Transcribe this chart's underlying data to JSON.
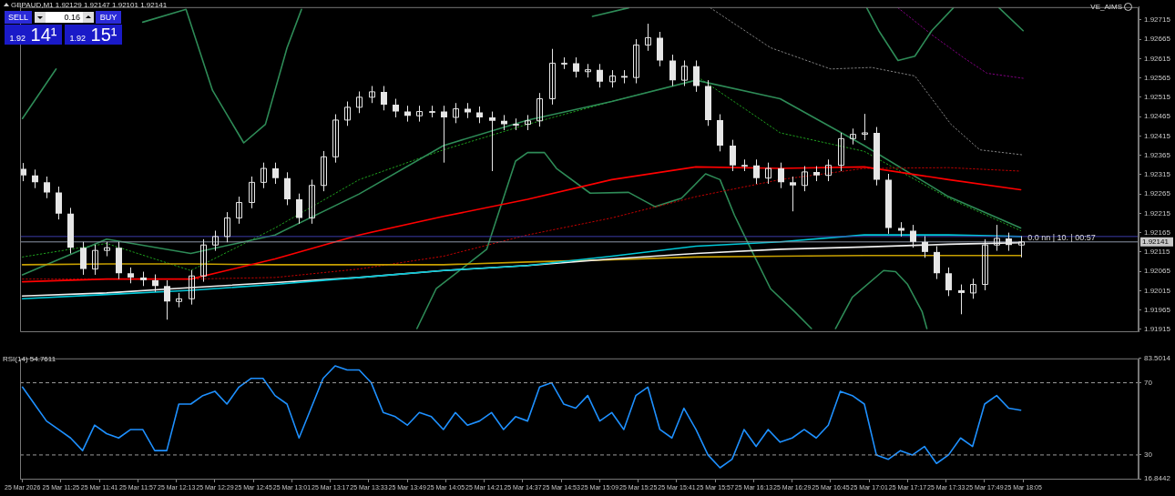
{
  "chart_data": [
    {
      "type": "candlestick",
      "title": "GBPAUD,M1 1.92129 1.92147 1.92101 1.92141",
      "color": "#e6e6e6",
      "tick_labels": "y",
      "xlim": [
        "2026-03-25T11:08",
        "2026-03-25T18:53"
      ],
      "ylim": [
        1.9191,
        1.92748
      ],
      "yticks": [
        1.92715,
        1.92665,
        1.92615,
        1.92565,
        1.92515,
        1.92465,
        1.92415,
        1.92365,
        1.92315,
        1.92265,
        1.92215,
        1.92165,
        1.92115,
        1.92065,
        1.92015,
        1.91965,
        1.91915
      ],
      "x": [
        "2026-03-25T11:09",
        "2026-03-25T11:14",
        "2026-03-25T11:19",
        "2026-03-25T11:24",
        "2026-03-25T11:29",
        "2026-03-25T11:34",
        "2026-03-25T11:39",
        "2026-03-25T11:44",
        "2026-03-25T11:49",
        "2026-03-25T11:54",
        "2026-03-25T11:59",
        "2026-03-25T12:04",
        "2026-03-25T12:09",
        "2026-03-25T12:14",
        "2026-03-25T12:19",
        "2026-03-25T12:24",
        "2026-03-25T12:29",
        "2026-03-25T12:34",
        "2026-03-25T12:39",
        "2026-03-25T12:44",
        "2026-03-25T12:49",
        "2026-03-25T12:54",
        "2026-03-25T12:59",
        "2026-03-25T13:04",
        "2026-03-25T13:09",
        "2026-03-25T13:14",
        "2026-03-25T13:19",
        "2026-03-25T13:24",
        "2026-03-25T13:29",
        "2026-03-25T13:34",
        "2026-03-25T13:39",
        "2026-03-25T13:44",
        "2026-03-25T13:49",
        "2026-03-25T13:54",
        "2026-03-25T13:59",
        "2026-03-25T14:04",
        "2026-03-25T14:09",
        "2026-03-25T14:14",
        "2026-03-25T14:19",
        "2026-03-25T14:24",
        "2026-03-25T14:29",
        "2026-03-25T14:34",
        "2026-03-25T14:39",
        "2026-03-25T14:44",
        "2026-03-25T14:49",
        "2026-03-25T14:54",
        "2026-03-25T14:59",
        "2026-03-25T15:04",
        "2026-03-25T15:09",
        "2026-03-25T15:14",
        "2026-03-25T15:19",
        "2026-03-25T15:24",
        "2026-03-25T15:29",
        "2026-03-25T15:34",
        "2026-03-25T15:39",
        "2026-03-25T15:44",
        "2026-03-25T15:49",
        "2026-03-25T15:54",
        "2026-03-25T15:59",
        "2026-03-25T16:04",
        "2026-03-25T16:09",
        "2026-03-25T16:14",
        "2026-03-25T16:19",
        "2026-03-25T16:24",
        "2026-03-25T16:29",
        "2026-03-25T16:34",
        "2026-03-25T16:39",
        "2026-03-25T16:44",
        "2026-03-25T16:49",
        "2026-03-25T16:54",
        "2026-03-25T16:59",
        "2026-03-25T17:04",
        "2026-03-25T17:09",
        "2026-03-25T17:14",
        "2026-03-25T17:19",
        "2026-03-25T17:24",
        "2026-03-25T17:29",
        "2026-03-25T17:34",
        "2026-03-25T17:39",
        "2026-03-25T17:44",
        "2026-03-25T17:49",
        "2026-03-25T17:54",
        "2026-03-25T17:59",
        "2026-03-25T18:04"
      ],
      "ohlc": [
        [
          1.9233,
          1.92345,
          1.92298,
          1.92313
        ],
        [
          1.92313,
          1.92328,
          1.9228,
          1.92295
        ],
        [
          1.92295,
          1.9231,
          1.92254,
          1.92269
        ],
        [
          1.92269,
          1.92284,
          1.92199,
          1.92214
        ],
        [
          1.92214,
          1.92229,
          1.92111,
          1.92126
        ],
        [
          1.92126,
          1.92141,
          1.92056,
          1.92071
        ],
        [
          1.92071,
          1.92134,
          1.92056,
          1.92119
        ],
        [
          1.92119,
          1.92141,
          1.92104,
          1.92126
        ],
        [
          1.92126,
          1.92141,
          1.92045,
          1.9206
        ],
        [
          1.9206,
          1.92075,
          1.92034,
          1.92049
        ],
        [
          1.92049,
          1.92064,
          1.92027,
          1.92042
        ],
        [
          1.92042,
          1.92057,
          1.92012,
          1.92027
        ],
        [
          1.92027,
          1.92042,
          1.9194,
          1.91987
        ],
        [
          1.91987,
          1.92009,
          1.91972,
          1.91994
        ],
        [
          1.91994,
          1.92068,
          1.91979,
          1.92053
        ],
        [
          1.92053,
          1.92148,
          1.92038,
          1.92133
        ],
        [
          1.92133,
          1.9217,
          1.92118,
          1.92155
        ],
        [
          1.92155,
          1.92218,
          1.9214,
          1.92203
        ],
        [
          1.92203,
          1.92258,
          1.92188,
          1.92243
        ],
        [
          1.92243,
          1.9231,
          1.92228,
          1.92295
        ],
        [
          1.92295,
          1.92346,
          1.9228,
          1.92331
        ],
        [
          1.92331,
          1.92346,
          1.92291,
          1.92306
        ],
        [
          1.92306,
          1.92321,
          1.92236,
          1.92251
        ],
        [
          1.92251,
          1.92266,
          1.92188,
          1.92203
        ],
        [
          1.92203,
          1.92302,
          1.92188,
          1.92287
        ],
        [
          1.92287,
          1.92376,
          1.92272,
          1.92361
        ],
        [
          1.92361,
          1.92471,
          1.92346,
          1.92456
        ],
        [
          1.92456,
          1.92504,
          1.92441,
          1.92489
        ],
        [
          1.92489,
          1.9253,
          1.92474,
          1.92515
        ],
        [
          1.92515,
          1.92544,
          1.925,
          1.92529
        ],
        [
          1.92529,
          1.92544,
          1.92481,
          1.92496
        ],
        [
          1.92496,
          1.92511,
          1.92463,
          1.92478
        ],
        [
          1.92478,
          1.92493,
          1.92452,
          1.92467
        ],
        [
          1.92467,
          1.92493,
          1.92452,
          1.92478
        ],
        [
          1.92478,
          1.92493,
          1.92463,
          1.92478
        ],
        [
          1.92478,
          1.92493,
          1.92346,
          1.92463
        ],
        [
          1.92463,
          1.925,
          1.92448,
          1.92485
        ],
        [
          1.92485,
          1.925,
          1.92461,
          1.92476
        ],
        [
          1.92476,
          1.92491,
          1.92448,
          1.92463
        ],
        [
          1.92463,
          1.92478,
          1.92324,
          1.92454
        ],
        [
          1.92454,
          1.92469,
          1.9243,
          1.92445
        ],
        [
          1.92445,
          1.9246,
          1.9243,
          1.92445
        ],
        [
          1.92445,
          1.92469,
          1.9243,
          1.92454
        ],
        [
          1.92454,
          1.92526,
          1.92439,
          1.92511
        ],
        [
          1.92511,
          1.9264,
          1.92496,
          1.92603
        ],
        [
          1.92603,
          1.92618,
          1.92588,
          1.92603
        ],
        [
          1.92603,
          1.92618,
          1.92566,
          1.92581
        ],
        [
          1.92581,
          1.92601,
          1.92566,
          1.92586
        ],
        [
          1.92586,
          1.92601,
          1.9254,
          1.92555
        ],
        [
          1.92555,
          1.92585,
          1.9254,
          1.9257
        ],
        [
          1.9257,
          1.92585,
          1.92551,
          1.92566
        ],
        [
          1.92566,
          1.92665,
          1.92551,
          1.9265
        ],
        [
          1.9265,
          1.92705,
          1.92635,
          1.92669
        ],
        [
          1.92669,
          1.92684,
          1.92595,
          1.9261
        ],
        [
          1.9261,
          1.92625,
          1.92544,
          1.92559
        ],
        [
          1.92559,
          1.9261,
          1.92544,
          1.92595
        ],
        [
          1.92595,
          1.9261,
          1.92529,
          1.92544
        ],
        [
          1.92544,
          1.92559,
          1.92441,
          1.92456
        ],
        [
          1.92456,
          1.92471,
          1.92375,
          1.9239
        ],
        [
          1.9239,
          1.92405,
          1.92324,
          1.92339
        ],
        [
          1.92339,
          1.92354,
          1.92324,
          1.92339
        ],
        [
          1.92339,
          1.92354,
          1.92291,
          1.92306
        ],
        [
          1.92306,
          1.92346,
          1.92291,
          1.92331
        ],
        [
          1.92331,
          1.92346,
          1.9228,
          1.92295
        ],
        [
          1.92295,
          1.9231,
          1.9222,
          1.92287
        ],
        [
          1.92287,
          1.92337,
          1.92272,
          1.92322
        ],
        [
          1.92322,
          1.92337,
          1.92298,
          1.92313
        ],
        [
          1.92313,
          1.92354,
          1.92298,
          1.92339
        ],
        [
          1.92339,
          1.92423,
          1.92324,
          1.92408
        ],
        [
          1.92408,
          1.92434,
          1.92393,
          1.92419
        ],
        [
          1.92419,
          1.92472,
          1.92404,
          1.92423
        ],
        [
          1.92423,
          1.92438,
          1.92287,
          1.92302
        ],
        [
          1.92302,
          1.92317,
          1.92162,
          1.92177
        ],
        [
          1.92177,
          1.92192,
          1.92155,
          1.9217
        ],
        [
          1.9217,
          1.92185,
          1.92126,
          1.92141
        ],
        [
          1.92141,
          1.92156,
          1.921,
          1.92115
        ],
        [
          1.92115,
          1.9213,
          1.92045,
          1.9206
        ],
        [
          1.9206,
          1.92075,
          1.92001,
          1.92016
        ],
        [
          1.92016,
          1.92031,
          1.91954,
          1.92009
        ],
        [
          1.92009,
          1.92046,
          1.91994,
          1.92031
        ],
        [
          1.92031,
          1.92148,
          1.92016,
          1.92133
        ],
        [
          1.92133,
          1.92185,
          1.92118,
          1.9215
        ],
        [
          1.9215,
          1.92165,
          1.92118,
          1.92133
        ],
        [
          1.92133,
          1.92156,
          1.92101,
          1.92141
        ]
      ],
      "series": [
        {
          "type": "line",
          "color": "#ff0000",
          "x": [
            "2026-03-25T11:09",
            "2026-03-25T11:44",
            "2026-03-25T12:19",
            "2026-03-25T12:54",
            "2026-03-25T13:29",
            "2026-03-25T14:04",
            "2026-03-25T14:39",
            "2026-03-25T15:14",
            "2026-03-25T15:49",
            "2026-03-25T16:24",
            "2026-03-25T16:59",
            "2026-03-25T17:34",
            "2026-03-25T18:04"
          ],
          "values": [
            1.92038,
            1.92045,
            1.92045,
            1.92097,
            1.92159,
            1.92207,
            1.92251,
            1.92302,
            1.92335,
            1.92331,
            1.92335,
            1.92302,
            1.92276
          ]
        },
        {
          "type": "line",
          "color": "#00c8d8",
          "x": [
            "2026-03-25T11:09",
            "2026-03-25T11:44",
            "2026-03-25T12:19",
            "2026-03-25T12:54",
            "2026-03-25T13:29",
            "2026-03-25T14:04",
            "2026-03-25T14:39",
            "2026-03-25T15:14",
            "2026-03-25T15:49",
            "2026-03-25T16:24",
            "2026-03-25T16:59",
            "2026-03-25T17:34",
            "2026-03-25T18:04"
          ],
          "values": [
            1.91994,
            1.92005,
            1.92016,
            1.92031,
            1.92049,
            1.92067,
            1.9208,
            1.92104,
            1.9213,
            1.92141,
            1.92159,
            1.92159,
            1.92155
          ]
        },
        {
          "type": "line",
          "color": "#f0f0f0",
          "x": [
            "2026-03-25T11:09",
            "2026-03-25T11:44",
            "2026-03-25T12:19",
            "2026-03-25T12:54",
            "2026-03-25T13:29",
            "2026-03-25T14:04",
            "2026-03-25T14:39",
            "2026-03-25T15:14",
            "2026-03-25T15:49",
            "2026-03-25T16:24",
            "2026-03-25T16:59",
            "2026-03-25T17:34",
            "2026-03-25T18:04"
          ],
          "values": [
            1.92001,
            1.92009,
            1.92023,
            1.92036,
            1.92049,
            1.92067,
            1.9208,
            1.92097,
            1.92111,
            1.92122,
            1.92128,
            1.92135,
            1.92139
          ]
        },
        {
          "type": "line",
          "color": "#c8a000",
          "x": [
            "2026-03-25T11:09",
            "2026-03-25T11:44",
            "2026-03-25T12:19",
            "2026-03-25T12:54",
            "2026-03-25T13:29",
            "2026-03-25T14:04",
            "2026-03-25T14:39",
            "2026-03-25T15:14",
            "2026-03-25T15:49",
            "2026-03-25T16:24",
            "2026-03-25T16:59",
            "2026-03-25T17:34",
            "2026-03-25T18:04"
          ],
          "values": [
            1.92082,
            1.92084,
            1.92084,
            1.92082,
            1.92082,
            1.92082,
            1.92089,
            1.92095,
            1.92102,
            1.92104,
            1.92106,
            1.92106,
            1.92106
          ]
        },
        {
          "type": "line",
          "color": "#c00000",
          "line_style": "dotted",
          "x": [
            "2026-03-25T11:09",
            "2026-03-25T11:44",
            "2026-03-25T12:19",
            "2026-03-25T12:54",
            "2026-03-25T13:29",
            "2026-03-25T14:04",
            "2026-03-25T14:39",
            "2026-03-25T15:14",
            "2026-03-25T15:49",
            "2026-03-25T16:24",
            "2026-03-25T16:59",
            "2026-03-25T17:34",
            "2026-03-25T18:04"
          ],
          "values": [
            1.92045,
            1.92045,
            1.92045,
            1.92049,
            1.92071,
            1.92104,
            1.92159,
            1.92203,
            1.92258,
            1.92302,
            1.92331,
            1.92333,
            1.92324
          ]
        },
        {
          "type": "line",
          "color": "#2e8b57",
          "x": [
            "2026-03-25T11:09",
            "2026-03-25T11:44",
            "2026-03-25T12:19",
            "2026-03-25T12:54",
            "2026-03-25T13:29",
            "2026-03-25T14:04",
            "2026-03-25T14:39",
            "2026-03-25T15:14",
            "2026-03-25T15:49",
            "2026-03-25T16:24",
            "2026-03-25T16:59",
            "2026-03-25T17:34",
            "2026-03-25T18:04"
          ],
          "values": [
            1.92056,
            1.92148,
            1.92111,
            1.92159,
            1.92265,
            1.9239,
            1.92456,
            1.92504,
            1.92559,
            1.92511,
            1.9239,
            1.92258,
            1.92177
          ]
        },
        {
          "type": "line",
          "color": "#1e9e1e",
          "line_style": "dotted",
          "x": [
            "2026-03-25T11:09",
            "2026-03-25T11:44",
            "2026-03-25T12:19",
            "2026-03-25T12:54",
            "2026-03-25T13:29",
            "2026-03-25T14:04",
            "2026-03-25T14:39",
            "2026-03-25T15:14",
            "2026-03-25T15:51",
            "2026-03-25T16:24",
            "2026-03-25T16:59",
            "2026-03-25T17:34",
            "2026-03-25T18:04"
          ],
          "values": [
            1.92102,
            1.92137,
            1.92067,
            1.92177,
            1.92302,
            1.92379,
            1.92445,
            1.92504,
            1.92562,
            1.92423,
            1.92375,
            1.92254,
            1.9217
          ]
        },
        {
          "type": "line",
          "color": "#2e8b57",
          "x": [
            "2026-03-25T11:09",
            "2026-03-25T11:23",
            "2026-03-25T11:41",
            "2026-03-25T11:59",
            "2026-03-25T12:17",
            "2026-03-25T12:28",
            "2026-03-25T12:41",
            "2026-03-25T12:50",
            "2026-03-25T12:59",
            "2026-03-25T13:05",
            "2026-03-25T13:30",
            "2026-03-25T15:06",
            "2026-03-25T15:21",
            "2026-03-25T16:00",
            "2026-03-25T17:00",
            "2026-03-25T17:05",
            "2026-03-25T17:13",
            "2026-03-25T17:20",
            "2026-03-25T17:27",
            "2026-03-25T17:36",
            "2026-03-25T17:45",
            "2026-03-25T17:55",
            "2026-03-25T18:05"
          ],
          "values": [
            1.9246,
            1.92588,
            null,
            1.92709,
            1.92742,
            1.92533,
            1.92397,
            1.92445,
            1.92643,
            1.92742,
            null,
            1.92724,
            1.92746,
            null,
            1.92746,
            1.92687,
            1.9261,
            1.92621,
            1.92687,
            1.92746,
            null,
            1.92746,
            1.92687
          ]
        },
        {
          "type": "line",
          "color": "#2e8b57",
          "x": [
            "2026-03-25T13:53",
            "2026-03-25T14:01",
            "2026-03-25T14:22",
            "2026-03-25T14:34",
            "2026-03-25T14:39",
            "2026-03-25T14:46",
            "2026-03-25T14:51",
            "2026-03-25T15:05",
            "2026-03-25T15:21",
            "2026-03-25T15:32",
            "2026-03-25T15:43",
            "2026-03-25T15:53",
            "2026-03-25T15:59",
            "2026-03-25T16:05",
            "2026-03-25T16:13",
            "2026-03-25T16:20",
            "2026-03-25T16:30",
            "2026-03-25T16:37",
            "2026-03-25T16:42",
            "2026-03-25T16:47",
            "2026-03-25T16:54",
            "2026-03-25T17:07",
            "2026-03-25T17:12",
            "2026-03-25T17:17",
            "2026-03-25T17:23",
            "2026-03-25T17:25"
          ],
          "values": [
            1.91917,
            1.9202,
            1.92122,
            1.9235,
            1.92372,
            1.92372,
            1.92331,
            1.92267,
            1.92269,
            1.92232,
            1.92254,
            1.92317,
            1.92302,
            1.9221,
            1.92108,
            1.9202,
            1.91961,
            1.91917,
            null,
            1.91917,
            1.91998,
            1.92067,
            1.92064,
            1.92031,
            1.91961,
            1.91917
          ]
        },
        {
          "type": "line",
          "color": "#808080",
          "line_style": "dotted",
          "x": [
            "2026-03-25T15:55",
            "2026-03-25T16:20",
            "2026-03-25T16:45",
            "2026-03-25T17:02",
            "2026-03-25T17:20",
            "2026-03-25T17:35",
            "2026-03-25T17:47",
            "2026-03-25T18:05"
          ],
          "values": [
            1.92746,
            1.92643,
            1.92588,
            1.92592,
            1.9257,
            1.92445,
            1.92379,
            1.92366
          ]
        },
        {
          "type": "line",
          "color": "#800080",
          "line_style": "dotted",
          "x": [
            "2026-03-25T17:13",
            "2026-03-25T17:28",
            "2026-03-25T17:41",
            "2026-03-25T17:50",
            "2026-03-25T18:05"
          ],
          "values": [
            1.92746,
            1.92672,
            1.92614,
            1.92577,
            1.92564
          ]
        }
      ],
      "ref_lines": [
        {
          "axis": "y",
          "value": 1.92155,
          "color": "#3c3caa"
        },
        {
          "axis": "y",
          "value": 1.92141,
          "label": "1.92141",
          "color": "#8c96a8"
        }
      ],
      "annotations": [
        "VE_AIMS",
        {
          "text": "0.0 nn | 10. | 00:57",
          "x": "2026-03-25T18:21",
          "y": 1.9215
        },
        "SELL",
        "0.16",
        "BUY",
        "1.92 14¹",
        "1.92 15¹"
      ]
    },
    {
      "type": "line",
      "title": "RSI(14) 54.7611",
      "color": "#1e90ff",
      "xlim": [
        "2026-03-25T11:08",
        "2026-03-25T18:53"
      ],
      "ylim": [
        16.8442,
        83.5014
      ],
      "yticks": [
        83.5014,
        70,
        30,
        16.8442
      ],
      "xticks": [
        {
          "value": "2026-03-25T11:09",
          "label": "25 Mar 2026"
        },
        {
          "value": "2026-03-25T11:25",
          "label": "25 Mar 11:25"
        },
        {
          "value": "2026-03-25T11:41",
          "label": "25 Mar 11:41"
        },
        {
          "value": "2026-03-25T11:57",
          "label": "25 Mar 11:57"
        },
        {
          "value": "2026-03-25T12:13",
          "label": "25 Mar 12:13"
        },
        {
          "value": "2026-03-25T12:29",
          "label": "25 Mar 12:29"
        },
        {
          "value": "2026-03-25T12:45",
          "label": "25 Mar 12:45"
        },
        {
          "value": "2026-03-25T13:01",
          "label": "25 Mar 13:01"
        },
        {
          "value": "2026-03-25T13:17",
          "label": "25 Mar 13:17"
        },
        {
          "value": "2026-03-25T13:33",
          "label": "25 Mar 13:33"
        },
        {
          "value": "2026-03-25T13:49",
          "label": "25 Mar 13:49"
        },
        {
          "value": "2026-03-25T14:05",
          "label": "25 Mar 14:05"
        },
        {
          "value": "2026-03-25T14:21",
          "label": "25 Mar 14:21"
        },
        {
          "value": "2026-03-25T14:37",
          "label": "25 Mar 14:37"
        },
        {
          "value": "2026-03-25T14:53",
          "label": "25 Mar 14:53"
        },
        {
          "value": "2026-03-25T15:09",
          "label": "25 Mar 15:09"
        },
        {
          "value": "2026-03-25T15:25",
          "label": "25 Mar 15:25"
        },
        {
          "value": "2026-03-25T15:41",
          "label": "25 Mar 15:41"
        },
        {
          "value": "2026-03-25T15:57",
          "label": "25 Mar 15:57"
        },
        {
          "value": "2026-03-25T16:13",
          "label": "25 Mar 16:13"
        },
        {
          "value": "2026-03-25T16:29",
          "label": "25 Mar 16:29"
        },
        {
          "value": "2026-03-25T16:45",
          "label": "25 Mar 16:45"
        },
        {
          "value": "2026-03-25T17:01",
          "label": "25 Mar 17:01"
        },
        {
          "value": "2026-03-25T17:17",
          "label": "25 Mar 17:17"
        },
        {
          "value": "2026-03-25T17:33",
          "label": "25 Mar 17:33"
        },
        {
          "value": "2026-03-25T17:49",
          "label": "25 Mar 17:49"
        },
        {
          "value": "2026-03-25T18:05",
          "label": "25 Mar 18:05"
        }
      ],
      "x": [
        "2026-03-25T11:09",
        "2026-03-25T11:14",
        "2026-03-25T11:19",
        "2026-03-25T11:24",
        "2026-03-25T11:29",
        "2026-03-25T11:34",
        "2026-03-25T11:39",
        "2026-03-25T11:44",
        "2026-03-25T11:49",
        "2026-03-25T11:54",
        "2026-03-25T11:59",
        "2026-03-25T12:04",
        "2026-03-25T12:09",
        "2026-03-25T12:14",
        "2026-03-25T12:19",
        "2026-03-25T12:24",
        "2026-03-25T12:29",
        "2026-03-25T12:34",
        "2026-03-25T12:39",
        "2026-03-25T12:44",
        "2026-03-25T12:49",
        "2026-03-25T12:54",
        "2026-03-25T12:59",
        "2026-03-25T13:04",
        "2026-03-25T13:09",
        "2026-03-25T13:14",
        "2026-03-25T13:19",
        "2026-03-25T13:24",
        "2026-03-25T13:29",
        "2026-03-25T13:34",
        "2026-03-25T13:39",
        "2026-03-25T13:44",
        "2026-03-25T13:49",
        "2026-03-25T13:54",
        "2026-03-25T13:59",
        "2026-03-25T14:04",
        "2026-03-25T14:09",
        "2026-03-25T14:14",
        "2026-03-25T14:19",
        "2026-03-25T14:24",
        "2026-03-25T14:29",
        "2026-03-25T14:34",
        "2026-03-25T14:39",
        "2026-03-25T14:44",
        "2026-03-25T14:49",
        "2026-03-25T14:54",
        "2026-03-25T14:59",
        "2026-03-25T15:04",
        "2026-03-25T15:09",
        "2026-03-25T15:14",
        "2026-03-25T15:19",
        "2026-03-25T15:24",
        "2026-03-25T15:29",
        "2026-03-25T15:34",
        "2026-03-25T15:39",
        "2026-03-25T15:44",
        "2026-03-25T15:49",
        "2026-03-25T15:54",
        "2026-03-25T15:59",
        "2026-03-25T16:04",
        "2026-03-25T16:09",
        "2026-03-25T16:14",
        "2026-03-25T16:19",
        "2026-03-25T16:24",
        "2026-03-25T16:29",
        "2026-03-25T16:34",
        "2026-03-25T16:39",
        "2026-03-25T16:44",
        "2026-03-25T16:49",
        "2026-03-25T16:54",
        "2026-03-25T16:59",
        "2026-03-25T17:04",
        "2026-03-25T17:09",
        "2026-03-25T17:14",
        "2026-03-25T17:19",
        "2026-03-25T17:24",
        "2026-03-25T17:29",
        "2026-03-25T17:34",
        "2026-03-25T17:39",
        "2026-03-25T17:44",
        "2026-03-25T17:49",
        "2026-03-25T17:54",
        "2026-03-25T17:59",
        "2026-03-25T18:04"
      ],
      "values": [
        67.6,
        58.2,
        48.8,
        44.1,
        39.4,
        32.4,
        46.5,
        41.8,
        39.4,
        44.1,
        44.1,
        32.4,
        32.4,
        58.2,
        58.2,
        62.9,
        65.3,
        58.2,
        67.6,
        72.4,
        72.4,
        62.9,
        58.2,
        39.4,
        55.9,
        72.4,
        79.4,
        77.1,
        77.1,
        70,
        53.5,
        51.2,
        46.5,
        53.5,
        51.2,
        44.1,
        53.5,
        46.5,
        48.8,
        53.5,
        44.1,
        51.2,
        48.8,
        67.6,
        70,
        58.2,
        55.9,
        62.9,
        48.8,
        53.5,
        44.1,
        62.9,
        67.6,
        44.1,
        39.4,
        55.9,
        44.1,
        30,
        22.9,
        27.6,
        44.1,
        34.7,
        44.1,
        37.1,
        39.4,
        44.1,
        39.4,
        46.5,
        65.3,
        62.9,
        58.2,
        30,
        27.6,
        32.4,
        30,
        34.7,
        25.3,
        30,
        39.4,
        34.7,
        58.2,
        62.9,
        55.9,
        54.8
      ],
      "ref_lines": [
        {
          "axis": "y",
          "value": 70,
          "color": "#9a9a9a",
          "line_style": "dashed"
        },
        {
          "axis": "y",
          "value": 30,
          "color": "#9a9a9a",
          "line_style": "dashed"
        }
      ]
    }
  ]
}
